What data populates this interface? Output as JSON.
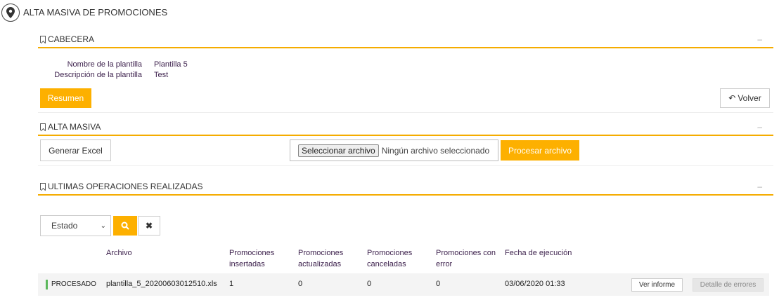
{
  "page": {
    "title": "ALTA MASIVA DE PROMOCIONES",
    "icon": "map-pin-icon"
  },
  "cabecera": {
    "title": "CABECERA",
    "collapse": "–",
    "fields": [
      {
        "label": "Nombre de la plantilla",
        "value": "Plantilla 5"
      },
      {
        "label": "Descripción de la plantilla",
        "value": "Test"
      }
    ],
    "resumen": "Resumen",
    "volver": "Volver"
  },
  "alta": {
    "title": "ALTA MASIVA",
    "collapse": "–",
    "generar": "Generar Excel",
    "file_button": "Seleccionar archivo",
    "file_status": "Ningún archivo seleccionado",
    "procesar": "Procesar archivo"
  },
  "ultimas": {
    "title": "ULTIMAS OPERACIONES REALIZADAS",
    "collapse": "–",
    "filter": {
      "selected": "Estado"
    },
    "columns": [
      "Archivo",
      "Promociones insertadas",
      "Promociones actualizadas",
      "Promociones canceladas",
      "Promociones con error",
      "Fecha de ejecución"
    ],
    "rows": [
      {
        "estado": "PROCESADO",
        "estado_color": "#5cb85c",
        "archivo": "plantilla_5_20200603012510.xls",
        "insertadas": "1",
        "actualizadas": "0",
        "canceladas": "0",
        "error": "0",
        "fecha": "03/06/2020 01:33",
        "ver": "Ver informe",
        "detalle": "Detalle de errores"
      }
    ]
  },
  "colors": {
    "accent": "#fdb000"
  }
}
